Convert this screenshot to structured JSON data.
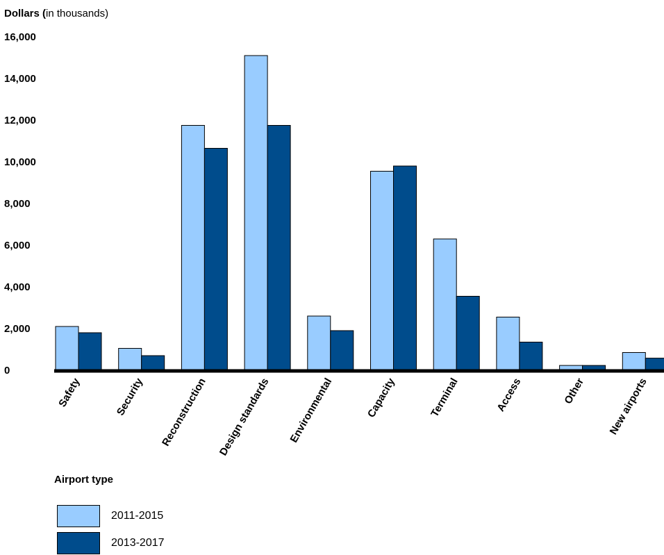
{
  "chart_data": {
    "type": "bar",
    "ylabel_bold": "Dollars (",
    "ylabel_rest": "in thousands)",
    "ylim": [
      0,
      16000
    ],
    "yticks": [
      "0",
      "2,000",
      "4,000",
      "6,000",
      "8,000",
      "10,000",
      "12,000",
      "14,000",
      "16,000"
    ],
    "categories": [
      "Safety",
      "Security",
      "Reconstruction",
      "Design standards",
      "Environmental",
      "Capacity",
      "Terminal",
      "Access",
      "Other",
      "New airports"
    ],
    "series": [
      {
        "name": "2011-2015",
        "color": "#99ccff",
        "values": [
          2100,
          1050,
          11750,
          15100,
          2600,
          9550,
          6300,
          2550,
          230,
          850
        ]
      },
      {
        "name": "2013-2017",
        "color": "#004c8c",
        "values": [
          1800,
          700,
          10650,
          11750,
          1900,
          9800,
          3550,
          1350,
          230,
          580
        ]
      }
    ],
    "legend_title": "Airport type",
    "legend_position": "bottom-left",
    "grid": false
  }
}
